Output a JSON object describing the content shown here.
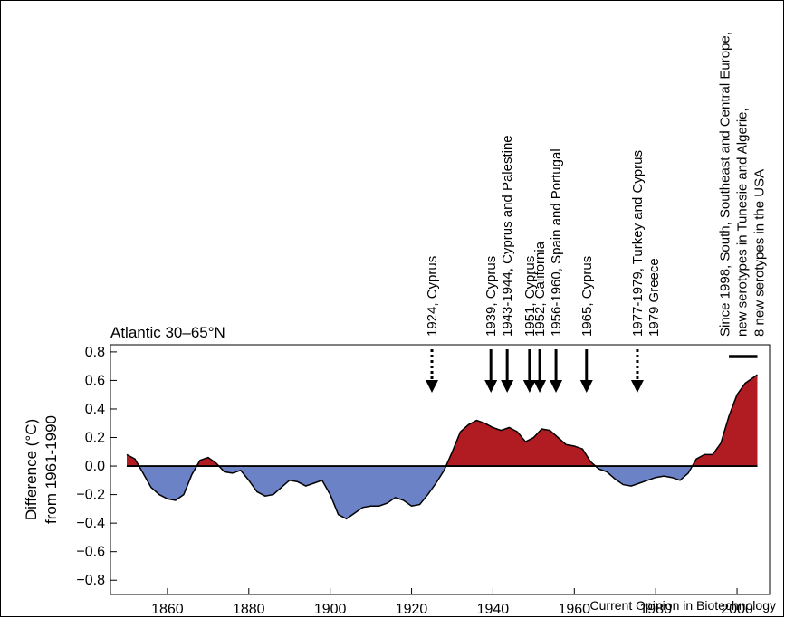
{
  "chart_data": {
    "type": "area",
    "title": "Atlantic 30–65°N",
    "ylabel_line1": "Difference (°C)",
    "ylabel_line2": "from 1961-1990",
    "xlabel": "",
    "xlim": [
      1846,
      2008
    ],
    "ylim": [
      -0.9,
      0.85
    ],
    "xticks": [
      1860,
      1880,
      1900,
      1920,
      1940,
      1960,
      1980,
      2000
    ],
    "yticks": [
      -0.8,
      -0.6,
      -0.4,
      -0.2,
      0.0,
      0.2,
      0.4,
      0.6,
      0.8
    ],
    "ytick_labels": [
      "−0.8",
      "−0.6",
      "−0.4",
      "−0.2",
      "0.0",
      "0.2",
      "0.4",
      "0.6",
      "0.8"
    ],
    "positive_color": "#b01c22",
    "negative_color": "#6b82c6",
    "grid": false,
    "series": [
      {
        "x": [
          1850,
          1852,
          1854,
          1856,
          1858,
          1860,
          1862,
          1864,
          1866,
          1868,
          1870,
          1872,
          1874,
          1876,
          1878,
          1880,
          1882,
          1884,
          1886,
          1888,
          1890,
          1892,
          1894,
          1896,
          1898,
          1900,
          1902,
          1904,
          1906,
          1908,
          1910,
          1912,
          1914,
          1916,
          1918,
          1920,
          1922,
          1924,
          1926,
          1928,
          1930,
          1932,
          1934,
          1936,
          1938,
          1940,
          1942,
          1944,
          1946,
          1948,
          1950,
          1952,
          1954,
          1956,
          1958,
          1960,
          1962,
          1964,
          1966,
          1968,
          1970,
          1972,
          1974,
          1976,
          1978,
          1980,
          1982,
          1984,
          1986,
          1988,
          1990,
          1992,
          1994,
          1996,
          1998,
          2000,
          2002,
          2004,
          2005
        ],
        "values": [
          0.08,
          0.05,
          -0.05,
          -0.15,
          -0.2,
          -0.23,
          -0.24,
          -0.2,
          -0.06,
          0.04,
          0.06,
          0.02,
          -0.04,
          -0.05,
          -0.03,
          -0.1,
          -0.18,
          -0.21,
          -0.2,
          -0.15,
          -0.1,
          -0.11,
          -0.14,
          -0.12,
          -0.1,
          -0.2,
          -0.34,
          -0.37,
          -0.33,
          -0.29,
          -0.28,
          -0.28,
          -0.26,
          -0.22,
          -0.24,
          -0.28,
          -0.27,
          -0.2,
          -0.12,
          -0.03,
          0.1,
          0.24,
          0.29,
          0.32,
          0.3,
          0.27,
          0.25,
          0.27,
          0.24,
          0.17,
          0.2,
          0.26,
          0.25,
          0.2,
          0.15,
          0.14,
          0.12,
          0.03,
          -0.02,
          -0.04,
          -0.09,
          -0.13,
          -0.14,
          -0.12,
          -0.1,
          -0.08,
          -0.07,
          -0.08,
          -0.1,
          -0.05,
          0.05,
          0.08,
          0.08,
          0.16,
          0.35,
          0.5,
          0.58,
          0.62,
          0.64
        ]
      }
    ],
    "events": [
      {
        "label": "1924, Cyprus",
        "year": 1925,
        "style": "dotted"
      },
      {
        "label": "1939, Cyprus",
        "year": 1939.5,
        "style": "solid"
      },
      {
        "label": "1943-1944, Cyprus and Palestine",
        "year": 1943.5,
        "style": "solid"
      },
      {
        "label": "1951, Cyprus",
        "year": 1949,
        "style": "solid"
      },
      {
        "label": "1952, California",
        "year": 1951.5,
        "style": "solid"
      },
      {
        "label": "1956-1960, Spain and Portugal",
        "year": 1955.5,
        "style": "solid"
      },
      {
        "label": "1965, Cyprus",
        "year": 1963,
        "style": "solid"
      },
      {
        "label": "1977-1979, Turkey and Cyprus",
        "year": 1975.5,
        "style": "dotted"
      },
      {
        "label": "1979 Greece",
        "year": 1979.5,
        "style": "text-only"
      }
    ],
    "period_annotation": {
      "lines": [
        "Since 1998, South, Southeast and Central Europe,",
        "new serotypes in Tunesie and Algerie,",
        "8 new serotypes in the USA"
      ],
      "bar_from": 1998,
      "bar_to": 2005
    }
  },
  "credit": "Current Opinion in Biotechnology"
}
